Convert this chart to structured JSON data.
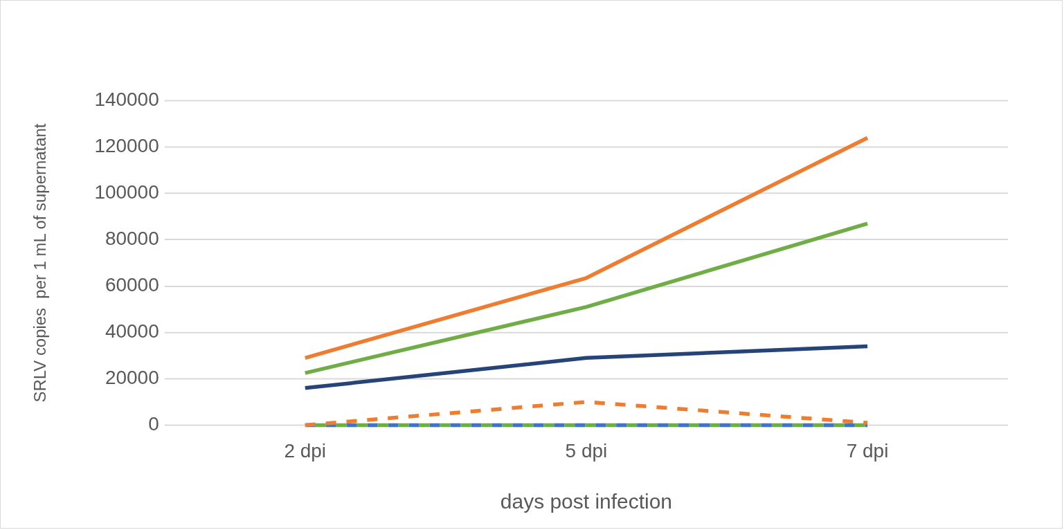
{
  "chart_data": {
    "type": "line",
    "xlabel": "days post infection",
    "ylabel": "SRLV copies  per 1 mL of supernatant",
    "categories": [
      "2 dpi",
      "5 dpi",
      "7 dpi"
    ],
    "ylim": [
      0,
      140000
    ],
    "yticks": [
      0,
      20000,
      40000,
      60000,
      80000,
      100000,
      120000,
      140000
    ],
    "grid": "y",
    "legend": false,
    "marker": "none",
    "series": [
      {
        "color": "#ed7d31",
        "values": [
          29000,
          63500,
          124000
        ],
        "line_style": "solid"
      },
      {
        "color": "#70ad47",
        "values": [
          22500,
          51000,
          87000
        ],
        "line_style": "solid"
      },
      {
        "color": "#264478",
        "values": [
          16000,
          29000,
          34000
        ],
        "line_style": "solid"
      },
      {
        "color": "#ed7d31",
        "values": [
          0,
          10000,
          1000
        ],
        "line_style": "dashed"
      },
      {
        "color": "#70ad47",
        "values": [
          0,
          0,
          0
        ],
        "line_style": "dashed"
      },
      {
        "color": "#4472c4",
        "values": [
          0,
          0,
          0
        ],
        "line_style": "dashed"
      }
    ]
  }
}
